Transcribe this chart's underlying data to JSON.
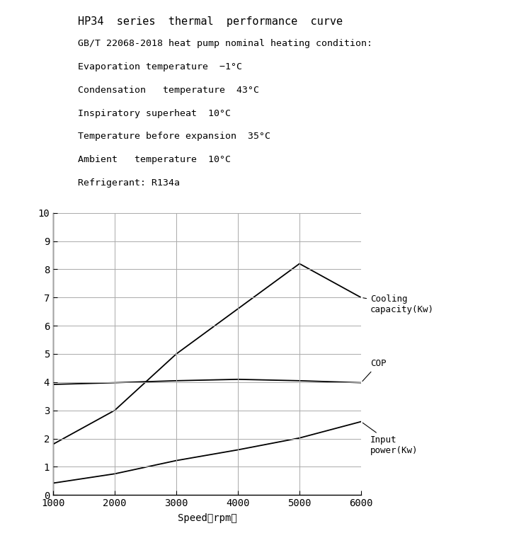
{
  "title_lines": [
    "HP34  series  thermal  performance  curve",
    "GB/T 22068-2018 heat pump nominal heating condition:",
    "Evaporation temperature  −1°C",
    "Condensation   temperature  43°C",
    "Inspiratory superheat  10°C",
    "Temperature before expansion  35°C",
    "Ambient   temperature  10°C",
    "Refrigerant: R134a"
  ],
  "x_rpm": [
    1000,
    2000,
    3000,
    4000,
    5000,
    6000
  ],
  "cooling_capacity": [
    1.8,
    3.0,
    5.0,
    6.6,
    8.2,
    7.0
  ],
  "cop": [
    3.92,
    3.98,
    4.05,
    4.1,
    4.05,
    3.98
  ],
  "input_power": [
    0.42,
    0.75,
    1.22,
    1.6,
    2.02,
    2.6
  ],
  "xlim": [
    1000,
    6000
  ],
  "ylim": [
    0,
    10
  ],
  "xticks": [
    1000,
    2000,
    3000,
    4000,
    5000,
    6000
  ],
  "yticks": [
    0,
    1,
    2,
    3,
    4,
    5,
    6,
    7,
    8,
    9,
    10
  ],
  "xlabel": "Speed（rpm）",
  "line_color": "#000000",
  "bg_color": "#ffffff",
  "grid_color": "#aaaaaa",
  "label_cooling": "Cooling\ncapacity(Kw)",
  "label_cop": "COP",
  "label_input": "Input\npower(Kw)"
}
